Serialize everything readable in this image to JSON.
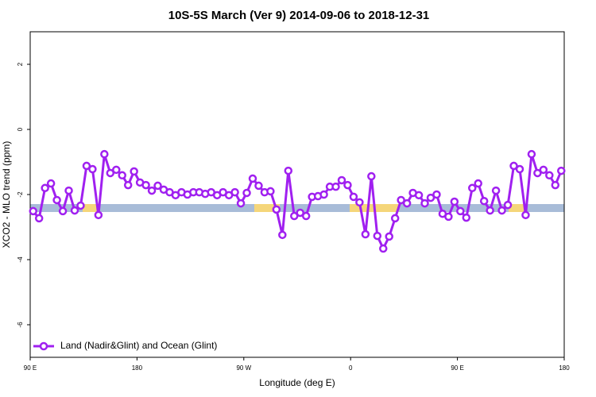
{
  "chart_data": {
    "type": "line",
    "title": "10S-5S March (Ver 9)   2014-09-06 to 2018-12-31",
    "x_label": "Longitude (deg E)",
    "y_label": "XCO2 - MLO trend (ppm)",
    "x": [
      92.5,
      97.5,
      102.5,
      107.5,
      112.5,
      117.5,
      122.5,
      127.5,
      132.5,
      137.5,
      142.5,
      147.5,
      152.5,
      157.5,
      162.5,
      167.5,
      172.5,
      177.5,
      182.5,
      187.5,
      192.5,
      197.5,
      202.5,
      207.5,
      212.5,
      217.5,
      222.5,
      227.5,
      232.5,
      237.5,
      242.5,
      247.5,
      252.5,
      257.5,
      262.5,
      267.5,
      272.5,
      277.5,
      282.5,
      287.5,
      292.5,
      297.5,
      302.5,
      307.5,
      312.5,
      317.5,
      322.5,
      327.5,
      332.5,
      337.5,
      342.5,
      347.5,
      352.5,
      357.5,
      362.5,
      367.5,
      372.5,
      377.5,
      382.5,
      387.5,
      392.5,
      397.5,
      402.5,
      407.5,
      412.5,
      417.5,
      422.5,
      427.5,
      432.5,
      437.5,
      442.5,
      447.5,
      452.5,
      457.5,
      462.5,
      467.5,
      472.5,
      477.5,
      482.5,
      487.5,
      492.5,
      497.5,
      502.5,
      507.5,
      512.5,
      517.5,
      522.5,
      527.5,
      532.5,
      537.5
    ],
    "series": [
      {
        "name": "Land (Nadir&Glint) and Ocean (Glint)",
        "color": "#a020f0",
        "values": [
          -2.51,
          -2.73,
          -1.8,
          -1.66,
          -2.17,
          -2.51,
          -1.88,
          -2.49,
          -2.34,
          -1.12,
          -1.22,
          -2.63,
          -0.76,
          -1.34,
          -1.24,
          -1.41,
          -1.71,
          -1.29,
          -1.63,
          -1.71,
          -1.88,
          -1.73,
          -1.85,
          -1.93,
          -2.02,
          -1.93,
          -2.0,
          -1.93,
          -1.93,
          -1.98,
          -1.93,
          -2.02,
          -1.93,
          -2.02,
          -1.93,
          -2.27,
          -1.95,
          -1.51,
          -1.73,
          -1.93,
          -1.9,
          -2.46,
          -3.24,
          -1.27,
          -2.66,
          -2.56,
          -2.66,
          -2.07,
          -2.05,
          -2.0,
          -1.76,
          -1.76,
          -1.56,
          -1.71,
          -2.07,
          -2.24,
          -3.22,
          -1.44,
          -3.27,
          -3.66,
          -3.29,
          -2.73,
          -2.17,
          -2.27,
          -1.95,
          -2.02,
          -2.27,
          -2.1,
          -2.0,
          -2.59,
          -2.68,
          -2.22,
          -2.51,
          -2.71,
          -1.8,
          -1.66,
          -2.2,
          -2.49,
          -1.88,
          -2.49,
          -2.32,
          -1.12,
          -1.22,
          -2.63,
          -0.76,
          -1.34,
          -1.24,
          -1.41,
          -1.71,
          -1.27
        ]
      }
    ],
    "xlim": [
      90,
      540
    ],
    "xticks": [
      {
        "value": 90,
        "label": "90 E"
      },
      180,
      {
        "value": 270,
        "label": "90 W"
      },
      {
        "value": 360,
        "label": "0"
      },
      {
        "value": 450,
        "label": "90 E"
      },
      {
        "value": 540,
        "label": "180"
      }
    ],
    "ylim": [
      -7,
      3
    ],
    "yticks": [
      -6,
      -4,
      -2,
      0,
      2
    ],
    "legend": "bottomleft"
  }
}
